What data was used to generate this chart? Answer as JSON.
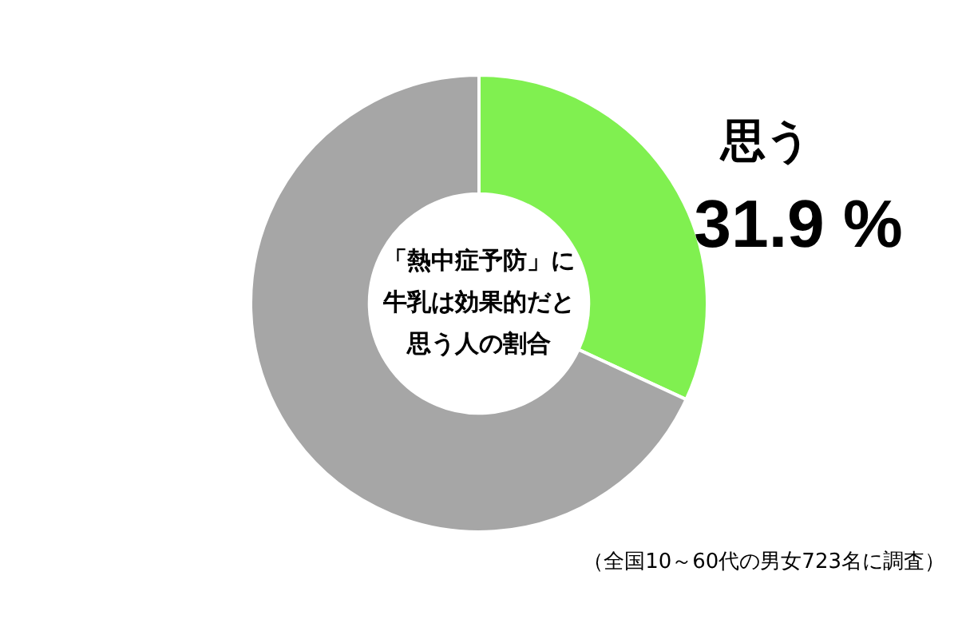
{
  "chart_data": {
    "type": "donut",
    "title": "「熱中症予防」に牛乳は効果的だと思う人の割合",
    "categories": [
      "思う",
      null
    ],
    "values": [
      31.9,
      68.1
    ],
    "colors": [
      "#80f050",
      "#a6a6a6"
    ],
    "value_labels": [
      "31.9 %",
      null
    ],
    "annotations": [
      "（全国10～60代の男女723名に調査）"
    ]
  }
}
